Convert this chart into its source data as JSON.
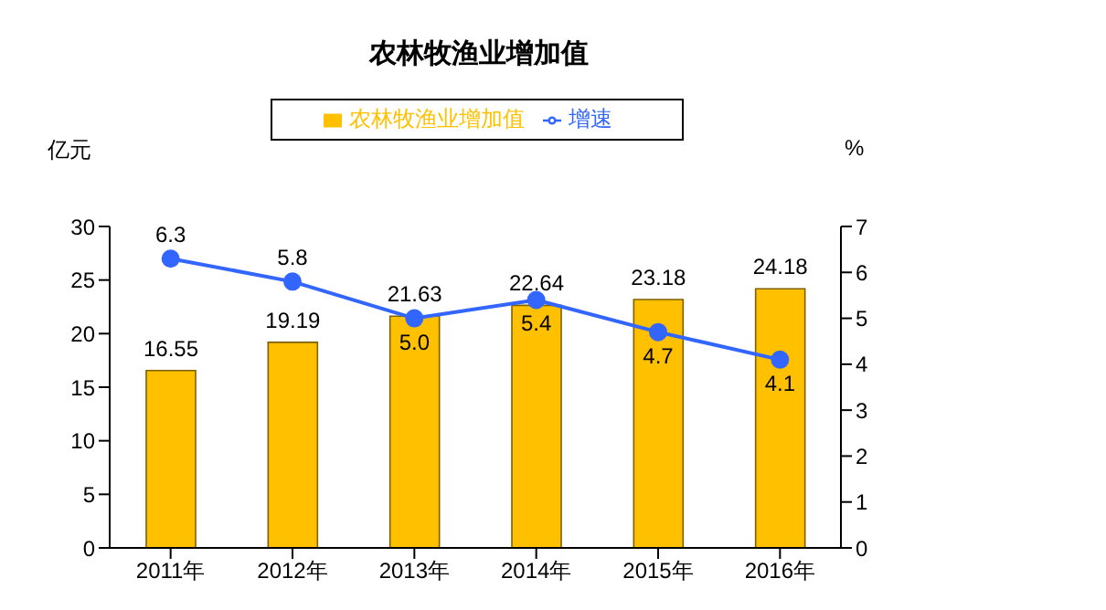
{
  "chart_data": {
    "type": "bar",
    "title": "农林牧渔业增加值",
    "ylabel": "亿元",
    "y2label": "%",
    "categories": [
      "2011年",
      "2012年",
      "2013年",
      "2014年",
      "2015年",
      "2016年"
    ],
    "series": [
      {
        "name": "农林牧渔业增加值",
        "color": "#ffc000",
        "values": [
          16.55,
          19.19,
          21.63,
          22.64,
          23.18,
          24.18
        ]
      },
      {
        "name": "增速",
        "type": "line",
        "axis": "y2",
        "color": "#3366ff",
        "values": [
          6.3,
          5.8,
          5.0,
          5.4,
          4.7,
          4.1
        ],
        "value_labels": [
          "6.3",
          "5.8",
          "5.0",
          "5.4",
          "4.7",
          "4.1"
        ]
      }
    ],
    "ylim": [
      0,
      30
    ],
    "yticks": [
      0,
      5,
      10,
      15,
      20,
      25,
      30
    ],
    "y2lim": [
      0,
      7
    ],
    "y2ticks": [
      0,
      1,
      2,
      3,
      4,
      5,
      6,
      7
    ],
    "data_labels": true,
    "legend": "top",
    "marker": "circle",
    "grid": false
  }
}
